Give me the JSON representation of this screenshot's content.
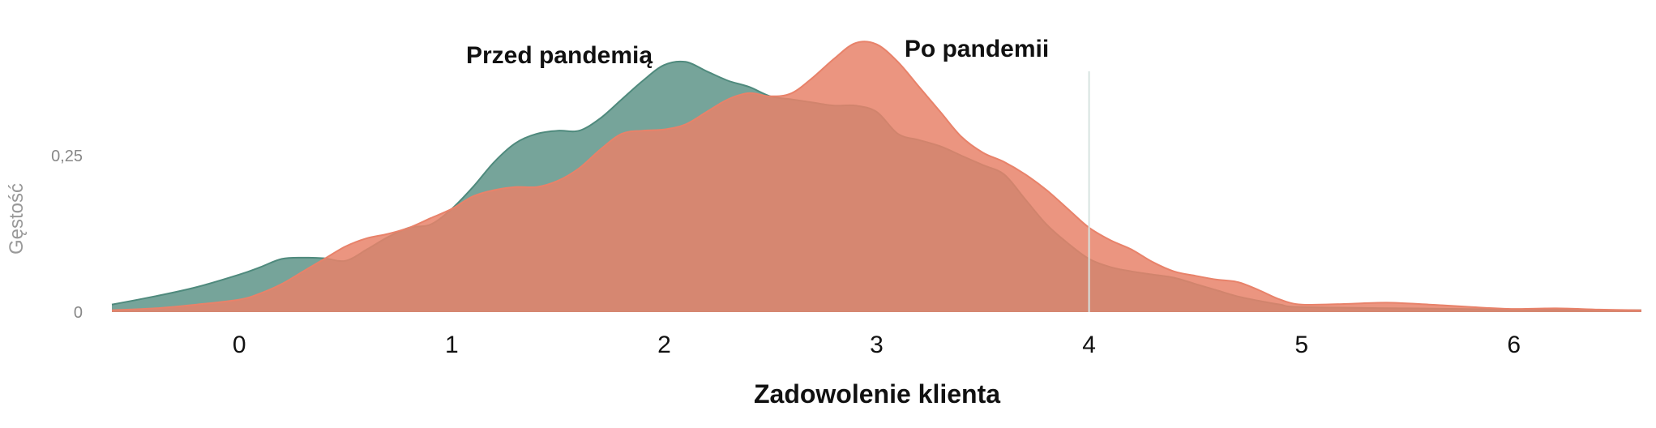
{
  "chart_data": {
    "type": "area",
    "title": "",
    "xlabel": "Zadowolenie klienta",
    "ylabel": "Gęstość",
    "xlim": [
      -0.6,
      6.6
    ],
    "ylim": [
      0,
      0.46
    ],
    "x_ticks": [
      0,
      1,
      2,
      3,
      4,
      5,
      6
    ],
    "y_ticks": [
      {
        "value": 0,
        "label": "0"
      },
      {
        "value": 0.25,
        "label": "0,25"
      }
    ],
    "reference_line_x": 4,
    "grid": false,
    "series": [
      {
        "name": "Przed pandemią",
        "color": "#4f8a7d",
        "x": [
          -0.6,
          -0.4,
          -0.2,
          0,
          0.1,
          0.2,
          0.3,
          0.4,
          0.5,
          0.6,
          0.7,
          0.8,
          0.9,
          1.0,
          1.1,
          1.2,
          1.3,
          1.4,
          1.5,
          1.6,
          1.7,
          1.8,
          1.9,
          2.0,
          2.1,
          2.2,
          2.3,
          2.4,
          2.5,
          2.6,
          2.7,
          2.8,
          2.9,
          3.0,
          3.1,
          3.2,
          3.3,
          3.4,
          3.5,
          3.6,
          3.7,
          3.8,
          3.9,
          4.0,
          4.1,
          4.2,
          4.3,
          4.4,
          4.5,
          4.6,
          4.7,
          4.8,
          4.9,
          5.0,
          5.5,
          6.0,
          6.6
        ],
        "values": [
          0.012,
          0.025,
          0.04,
          0.06,
          0.072,
          0.085,
          0.087,
          0.086,
          0.082,
          0.1,
          0.12,
          0.135,
          0.14,
          0.165,
          0.2,
          0.24,
          0.27,
          0.285,
          0.29,
          0.29,
          0.31,
          0.34,
          0.37,
          0.395,
          0.4,
          0.385,
          0.37,
          0.36,
          0.345,
          0.34,
          0.335,
          0.33,
          0.33,
          0.32,
          0.285,
          0.275,
          0.265,
          0.25,
          0.235,
          0.22,
          0.18,
          0.14,
          0.11,
          0.085,
          0.072,
          0.065,
          0.06,
          0.055,
          0.045,
          0.035,
          0.025,
          0.018,
          0.012,
          0.008,
          0.006,
          0.004,
          0.003
        ]
      },
      {
        "name": "Po pandemii",
        "color": "#e8826a",
        "x": [
          -0.6,
          -0.4,
          -0.2,
          0,
          0.1,
          0.2,
          0.3,
          0.4,
          0.5,
          0.6,
          0.7,
          0.8,
          0.9,
          1.0,
          1.1,
          1.2,
          1.3,
          1.4,
          1.5,
          1.6,
          1.7,
          1.8,
          1.9,
          2.0,
          2.1,
          2.2,
          2.3,
          2.4,
          2.5,
          2.6,
          2.7,
          2.8,
          2.9,
          3.0,
          3.1,
          3.2,
          3.3,
          3.4,
          3.5,
          3.6,
          3.7,
          3.8,
          3.9,
          4.0,
          4.1,
          4.2,
          4.3,
          4.4,
          4.5,
          4.6,
          4.7,
          4.8,
          4.9,
          5.0,
          5.2,
          5.4,
          5.6,
          5.8,
          6.0,
          6.2,
          6.4,
          6.6
        ],
        "values": [
          0.003,
          0.006,
          0.012,
          0.02,
          0.03,
          0.045,
          0.065,
          0.085,
          0.105,
          0.118,
          0.125,
          0.135,
          0.15,
          0.165,
          0.185,
          0.195,
          0.2,
          0.2,
          0.21,
          0.23,
          0.26,
          0.285,
          0.29,
          0.292,
          0.3,
          0.32,
          0.34,
          0.35,
          0.345,
          0.35,
          0.375,
          0.405,
          0.43,
          0.428,
          0.4,
          0.36,
          0.32,
          0.28,
          0.255,
          0.24,
          0.22,
          0.195,
          0.165,
          0.135,
          0.115,
          0.1,
          0.08,
          0.065,
          0.058,
          0.052,
          0.048,
          0.035,
          0.02,
          0.012,
          0.013,
          0.015,
          0.012,
          0.008,
          0.005,
          0.006,
          0.004,
          0.003
        ]
      }
    ]
  }
}
